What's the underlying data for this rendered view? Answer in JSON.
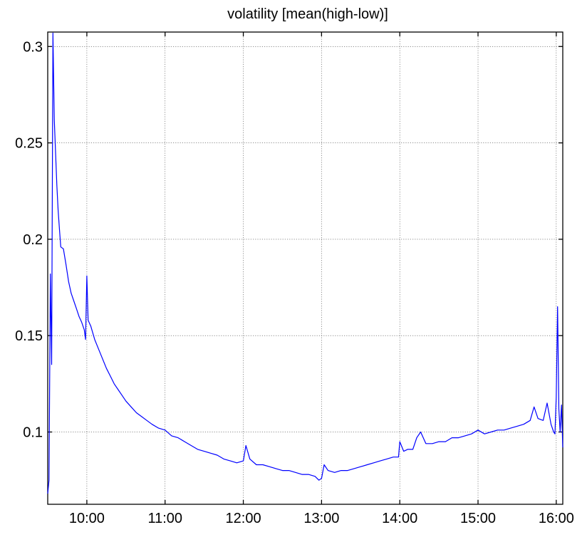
{
  "chart_data": {
    "type": "line",
    "title": "volatility [mean(high-low)]",
    "xlabel": "",
    "ylabel": "",
    "x_unit": "time of day",
    "xlim": [
      "09:30",
      "16:05"
    ],
    "ylim": [
      0.0625,
      0.3075
    ],
    "grid": true,
    "legend": "none",
    "x_ticks": [
      {
        "label": "10:00",
        "value": "10:00"
      },
      {
        "label": "11:00",
        "value": "11:00"
      },
      {
        "label": "12:00",
        "value": "12:00"
      },
      {
        "label": "13:00",
        "value": "13:00"
      },
      {
        "label": "14:00",
        "value": "14:00"
      },
      {
        "label": "15:00",
        "value": "15:00"
      },
      {
        "label": "16:00",
        "value": "16:00"
      }
    ],
    "y_ticks": [
      {
        "label": "0.1",
        "value": 0.1
      },
      {
        "label": "0.15",
        "value": 0.15
      },
      {
        "label": "0.2",
        "value": 0.2
      },
      {
        "label": "0.25",
        "value": 0.25
      },
      {
        "label": "0.3",
        "value": 0.3
      }
    ],
    "series": [
      {
        "color": "#0000ff",
        "points": [
          [
            "09:30",
            0.068
          ],
          [
            "09:31",
            0.075
          ],
          [
            "09:32",
            0.182
          ],
          [
            "09:33",
            0.135
          ],
          [
            "09:34",
            0.307
          ],
          [
            "09:35",
            0.262
          ],
          [
            "09:36",
            0.245
          ],
          [
            "09:37",
            0.228
          ],
          [
            "09:38",
            0.215
          ],
          [
            "09:39",
            0.205
          ],
          [
            "09:40",
            0.196
          ],
          [
            "09:42",
            0.195
          ],
          [
            "09:44",
            0.187
          ],
          [
            "09:46",
            0.178
          ],
          [
            "09:48",
            0.172
          ],
          [
            "09:50",
            0.168
          ],
          [
            "09:52",
            0.164
          ],
          [
            "09:54",
            0.16
          ],
          [
            "09:56",
            0.157
          ],
          [
            "09:58",
            0.153
          ],
          [
            "09:59",
            0.148
          ],
          [
            "10:00",
            0.181
          ],
          [
            "10:01",
            0.158
          ],
          [
            "10:03",
            0.155
          ],
          [
            "10:06",
            0.148
          ],
          [
            "10:09",
            0.143
          ],
          [
            "10:12",
            0.138
          ],
          [
            "10:15",
            0.133
          ],
          [
            "10:18",
            0.129
          ],
          [
            "10:21",
            0.125
          ],
          [
            "10:24",
            0.122
          ],
          [
            "10:27",
            0.119
          ],
          [
            "10:30",
            0.116
          ],
          [
            "10:34",
            0.113
          ],
          [
            "10:38",
            0.11
          ],
          [
            "10:42",
            0.108
          ],
          [
            "10:46",
            0.106
          ],
          [
            "10:50",
            0.104
          ],
          [
            "10:55",
            0.102
          ],
          [
            "11:00",
            0.101
          ],
          [
            "11:05",
            0.098
          ],
          [
            "11:10",
            0.097
          ],
          [
            "11:15",
            0.095
          ],
          [
            "11:20",
            0.093
          ],
          [
            "11:25",
            0.091
          ],
          [
            "11:30",
            0.09
          ],
          [
            "11:35",
            0.089
          ],
          [
            "11:40",
            0.088
          ],
          [
            "11:45",
            0.086
          ],
          [
            "11:50",
            0.085
          ],
          [
            "11:55",
            0.084
          ],
          [
            "12:00",
            0.085
          ],
          [
            "12:02",
            0.093
          ],
          [
            "12:05",
            0.086
          ],
          [
            "12:10",
            0.083
          ],
          [
            "12:15",
            0.083
          ],
          [
            "12:20",
            0.082
          ],
          [
            "12:25",
            0.081
          ],
          [
            "12:30",
            0.08
          ],
          [
            "12:35",
            0.08
          ],
          [
            "12:40",
            0.079
          ],
          [
            "12:45",
            0.078
          ],
          [
            "12:50",
            0.078
          ],
          [
            "12:55",
            0.077
          ],
          [
            "12:58",
            0.075
          ],
          [
            "13:00",
            0.076
          ],
          [
            "13:02",
            0.083
          ],
          [
            "13:05",
            0.08
          ],
          [
            "13:10",
            0.079
          ],
          [
            "13:15",
            0.08
          ],
          [
            "13:20",
            0.08
          ],
          [
            "13:25",
            0.081
          ],
          [
            "13:30",
            0.082
          ],
          [
            "13:35",
            0.083
          ],
          [
            "13:40",
            0.084
          ],
          [
            "13:45",
            0.085
          ],
          [
            "13:50",
            0.086
          ],
          [
            "13:55",
            0.087
          ],
          [
            "13:59",
            0.087
          ],
          [
            "14:00",
            0.095
          ],
          [
            "14:03",
            0.09
          ],
          [
            "14:06",
            0.091
          ],
          [
            "14:10",
            0.091
          ],
          [
            "14:13",
            0.097
          ],
          [
            "14:16",
            0.1
          ],
          [
            "14:20",
            0.094
          ],
          [
            "14:25",
            0.094
          ],
          [
            "14:30",
            0.095
          ],
          [
            "14:35",
            0.095
          ],
          [
            "14:40",
            0.097
          ],
          [
            "14:45",
            0.097
          ],
          [
            "14:50",
            0.098
          ],
          [
            "14:55",
            0.099
          ],
          [
            "15:00",
            0.101
          ],
          [
            "15:05",
            0.099
          ],
          [
            "15:10",
            0.1
          ],
          [
            "15:15",
            0.101
          ],
          [
            "15:20",
            0.101
          ],
          [
            "15:25",
            0.102
          ],
          [
            "15:30",
            0.103
          ],
          [
            "15:35",
            0.104
          ],
          [
            "15:40",
            0.106
          ],
          [
            "15:43",
            0.113
          ],
          [
            "15:46",
            0.107
          ],
          [
            "15:50",
            0.106
          ],
          [
            "15:53",
            0.115
          ],
          [
            "15:56",
            0.104
          ],
          [
            "15:58",
            0.1
          ],
          [
            "15:59",
            0.099
          ],
          [
            "16:00",
            0.118
          ],
          [
            "16:01",
            0.165
          ],
          [
            "16:02",
            0.112
          ],
          [
            "16:03",
            0.1
          ],
          [
            "16:04",
            0.114
          ],
          [
            "16:05",
            0.092
          ]
        ]
      }
    ]
  }
}
